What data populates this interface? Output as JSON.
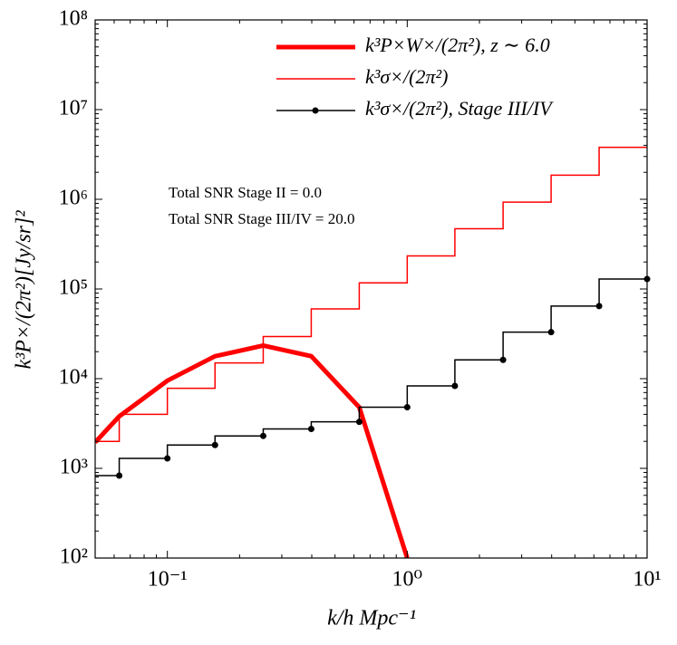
{
  "chart_data": {
    "type": "line",
    "xlabel": "k/h Mpc⁻¹",
    "ylabel": "k³P×/(2π²)[Jy/sr]²",
    "log_x": true,
    "log_y": true,
    "legend": "upper right",
    "xlim": [
      0.05,
      10
    ],
    "ylim": [
      100,
      100000000
    ],
    "xticks": [
      {
        "value": 0.1,
        "label": "10⁻¹"
      },
      {
        "value": 1,
        "label": "10⁰"
      },
      {
        "value": 10,
        "label": "10¹"
      }
    ],
    "yticks": [
      {
        "value": 100,
        "label": "10²"
      },
      {
        "value": 1000,
        "label": "10³"
      },
      {
        "value": 10000,
        "label": "10⁴"
      },
      {
        "value": 100000,
        "label": "10⁵"
      },
      {
        "value": 1000000,
        "label": "10⁶"
      },
      {
        "value": 10000000,
        "label": "10⁷"
      },
      {
        "value": 100000000,
        "label": "10⁸"
      }
    ],
    "annotations": [
      "Total SNR Stage II = 0.0",
      "Total SNR Stage III/IV = 20.0"
    ],
    "series": [
      {
        "name": "k³P×W×/(2π²), z ∼ 6.0",
        "color": "#ff0000",
        "style": "line",
        "width": 5,
        "x": [
          0.05,
          0.063,
          0.1,
          0.158,
          0.251,
          0.398,
          0.631,
          1.0
        ],
        "values": [
          1950,
          3800,
          9500,
          17800,
          23400,
          17800,
          4800,
          100
        ]
      },
      {
        "name": "k³σ×/(2π²)",
        "color": "#ff0000",
        "style": "step",
        "width": 1.5,
        "x": [
          0.063,
          0.1,
          0.158,
          0.251,
          0.398,
          0.631,
          1.0,
          1.58,
          2.51,
          3.98,
          6.31,
          10
        ],
        "values": [
          2000,
          4000,
          7800,
          15000,
          29500,
          60000,
          117000,
          234000,
          470000,
          930000,
          1860000,
          3800000
        ]
      },
      {
        "name": "k³σ×/(2π²), Stage III/IV",
        "color": "#000000",
        "style": "step",
        "width": 1.5,
        "marker": "o",
        "x": [
          0.063,
          0.1,
          0.158,
          0.251,
          0.398,
          0.631,
          1.0,
          1.58,
          2.51,
          3.98,
          6.31,
          10
        ],
        "values": [
          830,
          1290,
          1820,
          2300,
          2750,
          3300,
          4800,
          8300,
          16200,
          33000,
          64500,
          129000
        ]
      }
    ]
  }
}
